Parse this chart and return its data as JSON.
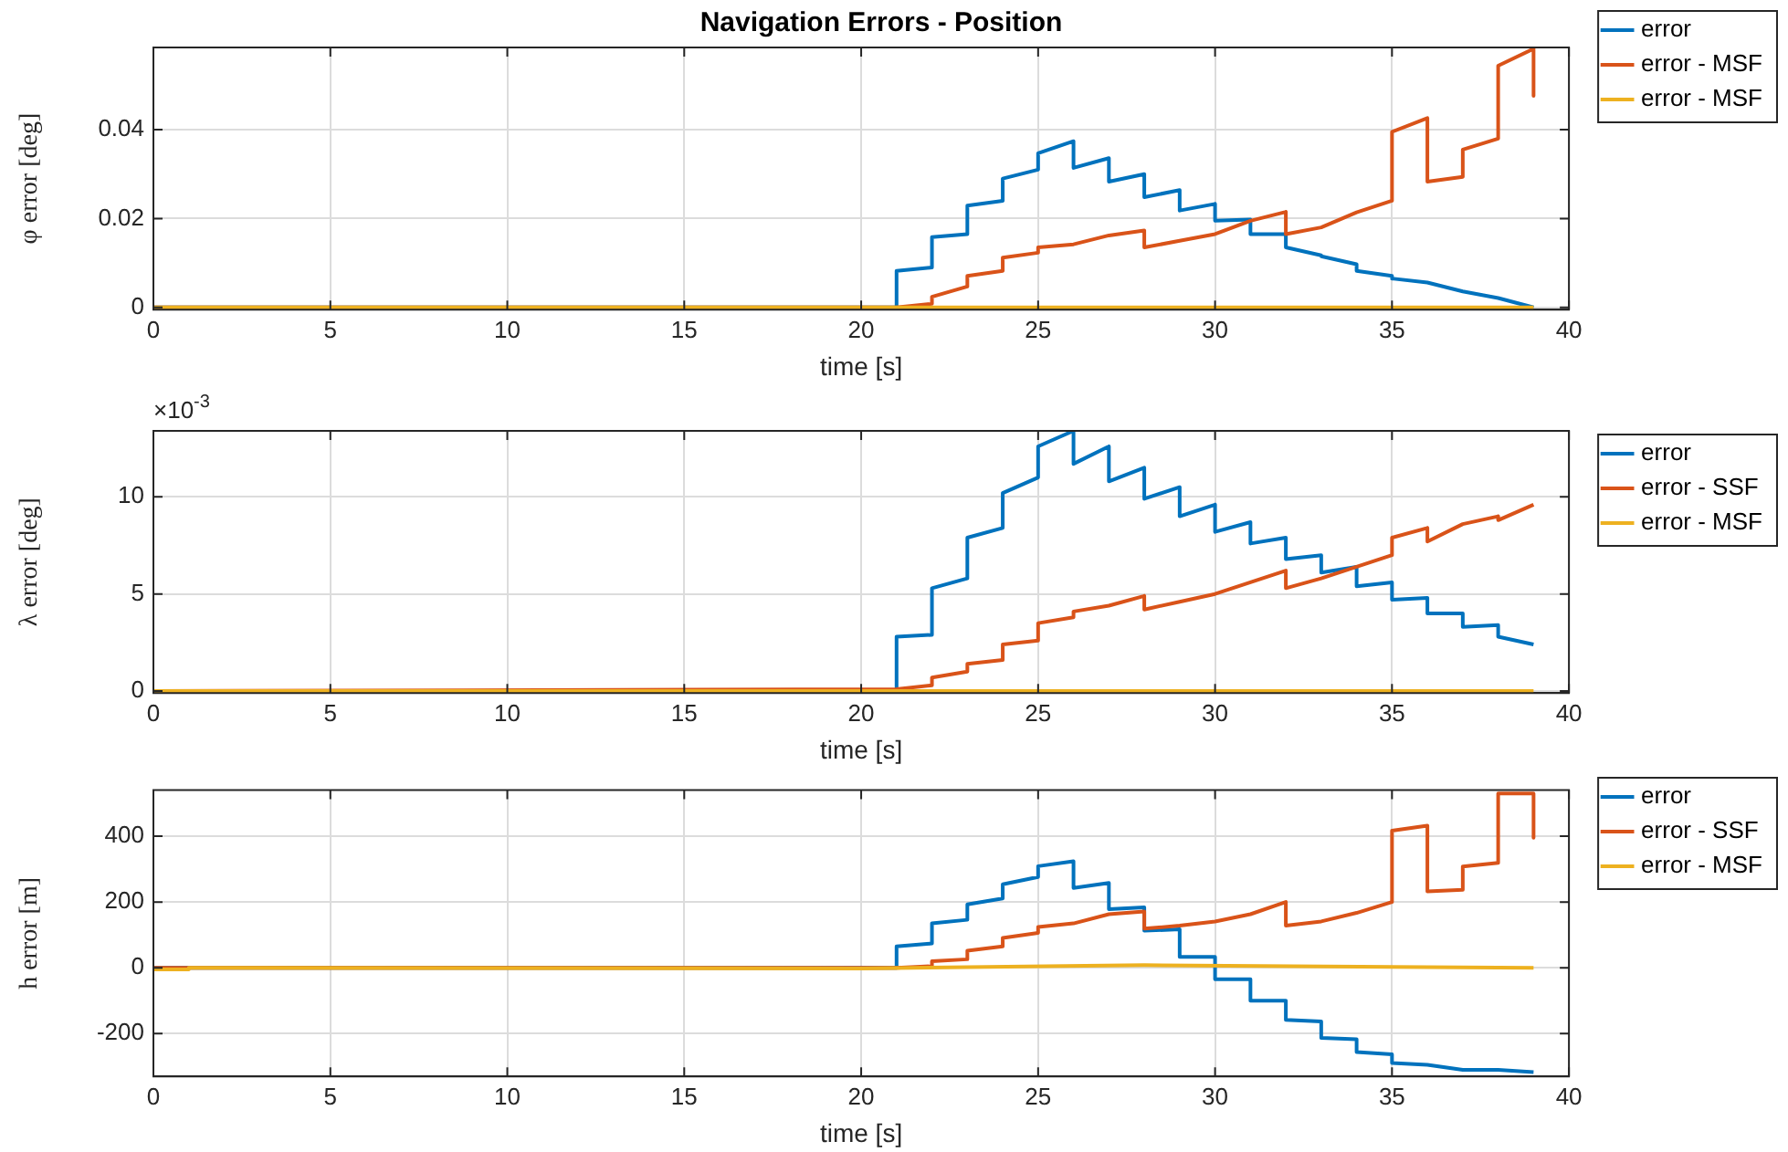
{
  "chart_data": [
    {
      "type": "line",
      "title": "Navigation Errors - Position",
      "xlabel": "time [s]",
      "ylabel": "φ error [deg]",
      "xlim": [
        0,
        40
      ],
      "xticks": [
        0,
        5,
        10,
        15,
        20,
        25,
        30,
        35,
        40
      ],
      "ylim": [
        -0.0005,
        0.0585
      ],
      "yticks": [
        0,
        0.02,
        0.04
      ],
      "grid": true,
      "legend": "right",
      "marker": "none",
      "series": [
        {
          "name": "error",
          "color": "#0072bd",
          "x": [
            0,
            21,
            21,
            22,
            22,
            23,
            23,
            24,
            24,
            25,
            25,
            26,
            26,
            27,
            27,
            28,
            28,
            29,
            29,
            30,
            30,
            31,
            31,
            32,
            32,
            33,
            33,
            34,
            34,
            35,
            35,
            36,
            37,
            38,
            39
          ],
          "values": [
            0,
            0,
            0.0082,
            0.009,
            0.0158,
            0.0165,
            0.0229,
            0.024,
            0.029,
            0.031,
            0.0347,
            0.0374,
            0.0314,
            0.0336,
            0.0283,
            0.03,
            0.0248,
            0.0264,
            0.0218,
            0.0233,
            0.0195,
            0.0198,
            0.0165,
            0.0165,
            0.0135,
            0.0117,
            0.0115,
            0.0097,
            0.0082,
            0.0071,
            0.0065,
            0.0056,
            0.0036,
            0.0021,
            0
          ]
        },
        {
          "name": "error - MSF",
          "color": "#d95319",
          "x": [
            0,
            21,
            22,
            22,
            23,
            23,
            24,
            24,
            25,
            25,
            26,
            27,
            28,
            28,
            29,
            30,
            31,
            32,
            32,
            33,
            34,
            35,
            35,
            36,
            36,
            37,
            37,
            38,
            38,
            39,
            39
          ],
          "values": [
            0,
            0,
            0.0008,
            0.0024,
            0.0047,
            0.0071,
            0.0082,
            0.0112,
            0.0123,
            0.0135,
            0.0142,
            0.0162,
            0.0173,
            0.0135,
            0.015,
            0.0165,
            0.0195,
            0.0215,
            0.0165,
            0.018,
            0.0214,
            0.024,
            0.0395,
            0.0426,
            0.0283,
            0.0294,
            0.0355,
            0.038,
            0.0544,
            0.0582,
            0.0476
          ]
        },
        {
          "name": "error - MSF",
          "color": "#edb120",
          "x": [
            0,
            39
          ],
          "values": [
            0,
            0
          ]
        }
      ]
    },
    {
      "type": "line",
      "xlabel": "time [s]",
      "ylabel": "λ error [deg]",
      "annotations": [
        "×10$^{-3}$"
      ],
      "xlim": [
        0,
        40
      ],
      "xticks": [
        0,
        5,
        10,
        15,
        20,
        25,
        30,
        35,
        40
      ],
      "ylim": [
        -0.1,
        13.4
      ],
      "yticks": [
        0,
        5,
        10
      ],
      "grid": true,
      "legend": "right",
      "marker": "none",
      "series": [
        {
          "name": "error",
          "color": "#0072bd",
          "x": [
            0,
            21,
            21,
            22,
            22,
            23,
            23,
            24,
            24,
            25,
            25,
            26,
            26,
            27,
            27,
            28,
            28,
            29,
            29,
            30,
            30,
            31,
            31,
            32,
            32,
            33,
            33,
            34,
            34,
            35,
            35,
            36,
            36,
            37,
            37,
            38,
            38,
            39
          ],
          "values": [
            0,
            0,
            2.8,
            2.9,
            5.3,
            5.8,
            7.9,
            8.4,
            10.2,
            11,
            12.6,
            13.4,
            11.7,
            12.6,
            10.8,
            11.5,
            9.9,
            10.5,
            9,
            9.6,
            8.2,
            8.7,
            7.6,
            7.9,
            6.8,
            7,
            6.1,
            6.4,
            5.4,
            5.6,
            4.7,
            4.8,
            4,
            4,
            3.3,
            3.4,
            2.8,
            2.4
          ]
        },
        {
          "name": "error - SSF",
          "color": "#d95319",
          "x": [
            0,
            21,
            22,
            22,
            23,
            23,
            24,
            24,
            25,
            25,
            26,
            26,
            27,
            28,
            28,
            29,
            30,
            31,
            32,
            32,
            33,
            34,
            35,
            35,
            36,
            36,
            37,
            38,
            38,
            39
          ],
          "values": [
            0,
            0.1,
            0.3,
            0.7,
            1,
            1.4,
            1.6,
            2.4,
            2.6,
            3.5,
            3.8,
            4.1,
            4.4,
            4.9,
            4.2,
            4.6,
            5,
            5.6,
            6.2,
            5.3,
            5.8,
            6.4,
            7,
            7.9,
            8.4,
            7.7,
            8.6,
            9,
            8.8,
            9.6
          ]
        },
        {
          "name": "error - MSF",
          "color": "#edb120",
          "x": [
            0,
            39
          ],
          "values": [
            0,
            0
          ]
        }
      ]
    },
    {
      "type": "line",
      "xlabel": "time [s]",
      "ylabel": "h error [m]",
      "xlim": [
        0,
        40
      ],
      "xticks": [
        0,
        5,
        10,
        15,
        20,
        25,
        30,
        35,
        40
      ],
      "ylim": [
        -330,
        540
      ],
      "yticks": [
        -200,
        0,
        200,
        400
      ],
      "grid": true,
      "legend": "right",
      "marker": "none",
      "series": [
        {
          "name": "error",
          "color": "#0072bd",
          "x": [
            0,
            21,
            21,
            22,
            22,
            23,
            23,
            24,
            24,
            25,
            25,
            26,
            26,
            27,
            27,
            28,
            28,
            29,
            29,
            30,
            30,
            31,
            31,
            32,
            32,
            33,
            33,
            34,
            34,
            35,
            35,
            36,
            37,
            38,
            39
          ],
          "values": [
            0,
            0,
            65,
            74,
            135,
            146,
            193,
            211,
            254,
            276,
            309,
            324,
            243,
            258,
            178,
            184,
            113,
            117,
            33,
            33,
            -35,
            -35,
            -100,
            -100,
            -158,
            -163,
            -213,
            -217,
            -256,
            -263,
            -289,
            -295,
            -310,
            -310,
            -317
          ]
        },
        {
          "name": "error - SSF",
          "color": "#d95319",
          "x": [
            0,
            21,
            22,
            22,
            23,
            23,
            24,
            24,
            25,
            25,
            26,
            27,
            28,
            28,
            29,
            30,
            31,
            32,
            32,
            33,
            34,
            35,
            35,
            36,
            36,
            37,
            37,
            38,
            38,
            39,
            39
          ],
          "values": [
            0,
            0,
            5,
            20,
            26,
            52,
            65,
            91,
            106,
            124,
            135,
            163,
            171,
            119,
            128,
            141,
            163,
            200,
            128,
            141,
            167,
            200,
            417,
            432,
            232,
            237,
            308,
            319,
            530,
            530,
            395
          ]
        },
        {
          "name": "error - MSF",
          "color": "#edb120",
          "x": [
            0,
            1,
            1,
            20,
            28,
            39
          ],
          "values": [
            -5,
            -5,
            0,
            -2,
            8,
            0
          ]
        }
      ]
    }
  ]
}
